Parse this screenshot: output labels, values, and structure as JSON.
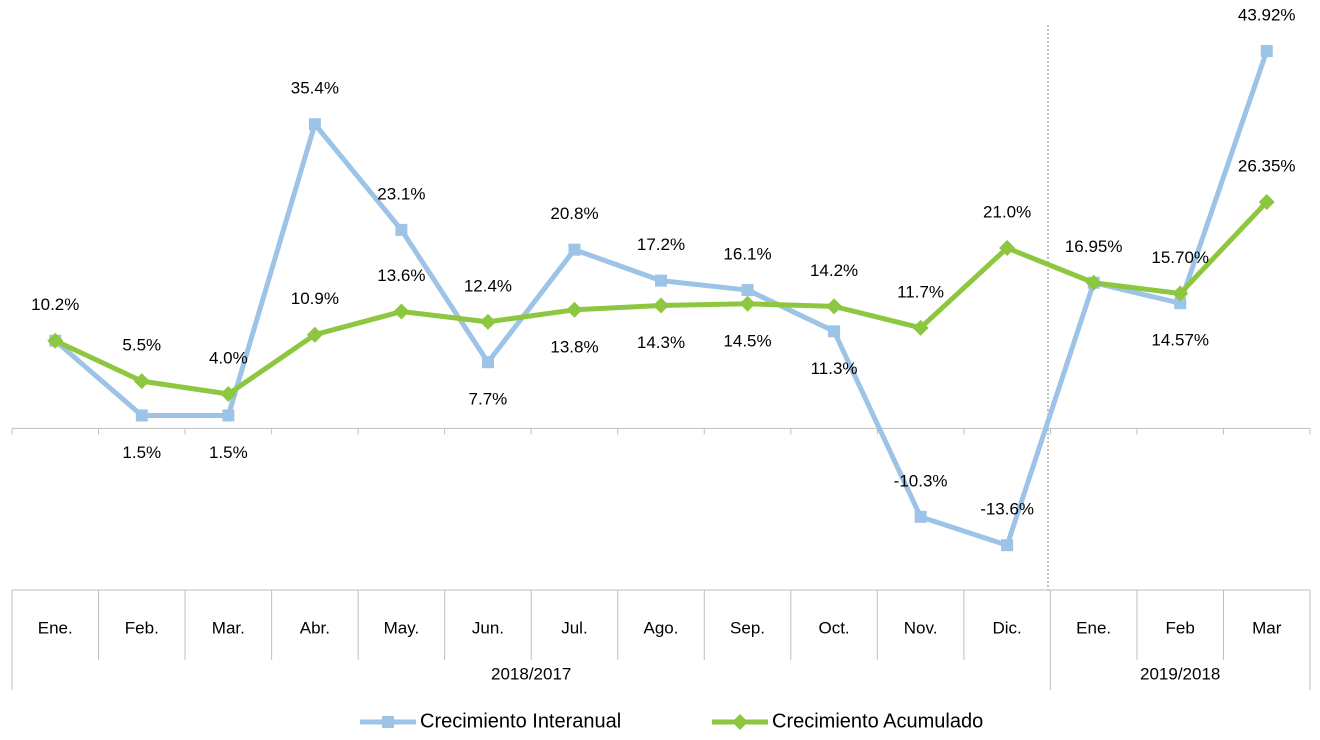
{
  "chart_data": {
    "type": "line",
    "category_groups": [
      {
        "label": "2018/2017",
        "categories": [
          "Ene.",
          "Feb.",
          "Mar.",
          "Abr.",
          "May.",
          "Jun.",
          "Jul.",
          "Ago.",
          "Sep.",
          "Oct.",
          "Nov.",
          "Dic."
        ]
      },
      {
        "label": "2019/2018",
        "categories": [
          "Ene.",
          "Feb",
          "Mar"
        ]
      }
    ],
    "series": [
      {
        "name": "Crecimiento Interanual",
        "color": "#9dc3e6",
        "marker": "square",
        "values": [
          10.2,
          1.5,
          1.5,
          35.4,
          23.1,
          7.7,
          20.8,
          17.2,
          16.1,
          11.3,
          -10.3,
          -13.6,
          16.95,
          14.57,
          43.92
        ],
        "value_labels": [
          "10.2%",
          "1.5%",
          "1.5%",
          "35.4%",
          "23.1%",
          "7.7%",
          "20.8%",
          "17.2%",
          "16.1%",
          "11.3%",
          "-10.3%",
          "-13.6%",
          "16.95%",
          "14.57%",
          "43.92%"
        ]
      },
      {
        "name": "Crecimiento Acumulado",
        "color": "#8dc63f",
        "marker": "diamond",
        "values": [
          10.2,
          5.5,
          4.0,
          10.9,
          13.6,
          12.4,
          13.8,
          14.3,
          14.5,
          14.2,
          11.7,
          21.0,
          16.95,
          15.7,
          26.35
        ],
        "value_labels": [
          null,
          "5.5%",
          "4.0%",
          "10.9%",
          "13.6%",
          "12.4%",
          "13.8%",
          "14.3%",
          "14.5%",
          "14.2%",
          "11.7%",
          "21.0%",
          null,
          "15.70%",
          "26.35%"
        ]
      }
    ],
    "ylim": [
      -18,
      48
    ],
    "legend": "bottom"
  }
}
